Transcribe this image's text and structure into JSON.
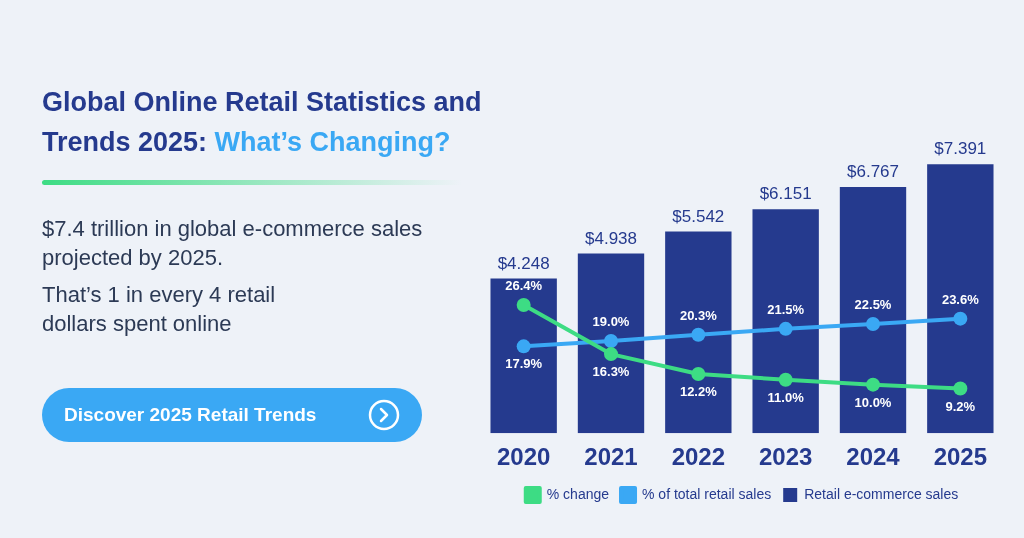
{
  "chart_data": {
    "type": "bar",
    "title": "Global Online Retail Statistics and Trends 2025:",
    "subtitle": "What’s Changing?",
    "annotations": [
      "$7.4 trillion in global e-commerce sales projected by 2025.",
      "That’s 1 in every 4 retail dollars spent online",
      "Discover 2025 Retail Trends"
    ],
    "categories": [
      "2020",
      "2021",
      "2022",
      "2023",
      "2024",
      "2025"
    ],
    "series": [
      {
        "name": "Retail e-commerce sales",
        "color": "#253a8e",
        "values": [
          4.248,
          4.938,
          5.542,
          6.151,
          6.767,
          7.391
        ],
        "value_labels": [
          "$4.248",
          "$4.938",
          "$5.542",
          "$6.151",
          "$6.767",
          "$7.391"
        ]
      },
      {
        "name": "% change",
        "type": "line",
        "axis": "y2",
        "color": "#3ddc84",
        "values": [
          26.4,
          16.3,
          12.2,
          11.0,
          10.0,
          9.2
        ],
        "value_labels": [
          "26.4%",
          "16.3%",
          "12.2%",
          "11.0%",
          "10.0%",
          "9.2%"
        ]
      },
      {
        "name": "% of total retail sales",
        "type": "line",
        "axis": "y2",
        "color": "#3aa8f4",
        "values": [
          17.9,
          19.0,
          20.3,
          21.5,
          22.5,
          23.6
        ],
        "value_labels": [
          "17.9%",
          "19.0%",
          "20.3%",
          "21.5%",
          "22.5%",
          "23.6%"
        ]
      }
    ],
    "tick_labels": "x",
    "grid": false,
    "legend": "bottom",
    "marker": "circle",
    "line_style": "solid"
  }
}
